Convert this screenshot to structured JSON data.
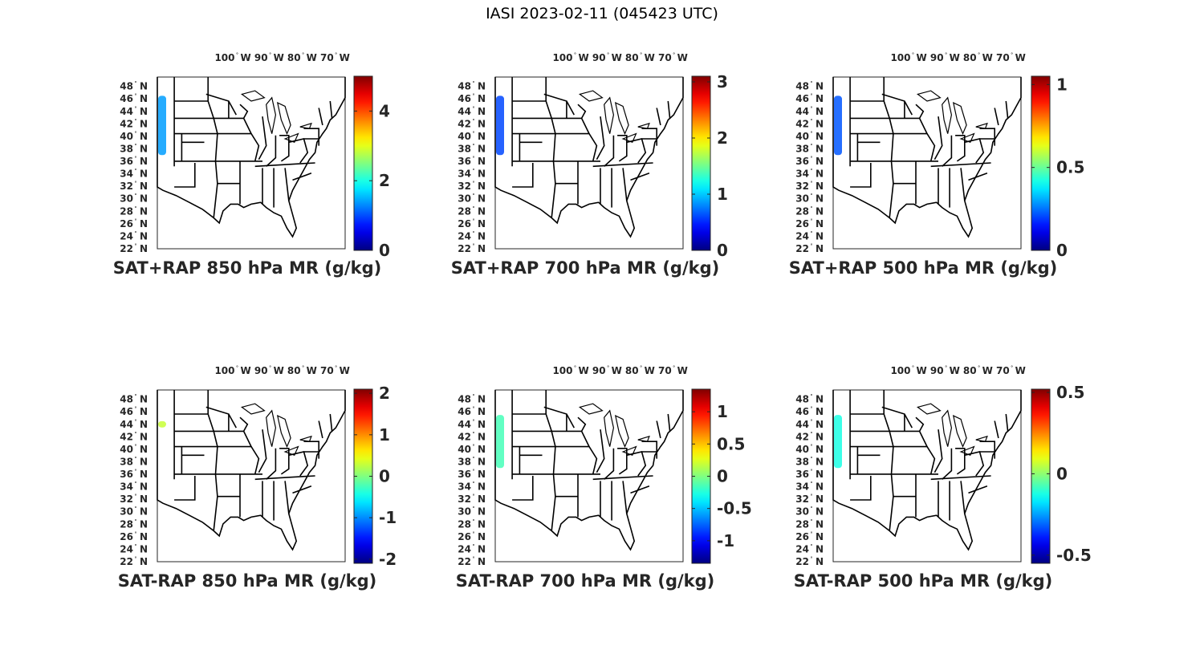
{
  "title": "IASI 2023-02-11 (045423 UTC)",
  "degree_symbol": "°",
  "lon_ticks": [
    {
      "deg": "100",
      "hem": "W",
      "lon": -100
    },
    {
      "deg": "90",
      "hem": "W",
      "lon": -90
    },
    {
      "deg": "80",
      "hem": "W",
      "lon": -80
    },
    {
      "deg": "70",
      "hem": "W",
      "lon": -70
    }
  ],
  "lat_ticks": [
    {
      "deg": "48",
      "hem": "N",
      "lat": 48
    },
    {
      "deg": "46",
      "hem": "N",
      "lat": 46
    },
    {
      "deg": "44",
      "hem": "N",
      "lat": 44
    },
    {
      "deg": "42",
      "hem": "N",
      "lat": 42
    },
    {
      "deg": "40",
      "hem": "N",
      "lat": 40
    },
    {
      "deg": "38",
      "hem": "N",
      "lat": 38
    },
    {
      "deg": "36",
      "hem": "N",
      "lat": 36
    },
    {
      "deg": "34",
      "hem": "N",
      "lat": 34
    },
    {
      "deg": "32",
      "hem": "N",
      "lat": 32
    },
    {
      "deg": "30",
      "hem": "N",
      "lat": 30
    },
    {
      "deg": "28",
      "hem": "N",
      "lat": 28
    },
    {
      "deg": "26",
      "hem": "N",
      "lat": 26
    },
    {
      "deg": "24",
      "hem": "N",
      "lat": 24
    },
    {
      "deg": "22",
      "hem": "N",
      "lat": 22
    }
  ],
  "colormap": "jet",
  "panels": [
    {
      "title": "SAT+RAP 850 hPa MR (g/kg)",
      "clim": [
        0,
        5
      ],
      "cbar_ticks": [
        "0",
        "2",
        "4"
      ],
      "cbar_values": [
        0,
        2,
        4
      ],
      "swath_value": 1.4,
      "swath_lat": [
        37,
        46.5
      ]
    },
    {
      "title": "SAT+RAP 700 hPa MR (g/kg)",
      "clim": [
        0,
        3.1
      ],
      "cbar_ticks": [
        "0",
        "1",
        "2",
        "3"
      ],
      "cbar_values": [
        0,
        1,
        2,
        3
      ],
      "swath_value": 0.6,
      "swath_lat": [
        37,
        46.5
      ]
    },
    {
      "title": "SAT+RAP 500 hPa MR (g/kg)",
      "clim": [
        0,
        1.05
      ],
      "cbar_ticks": [
        "0",
        "0.5",
        "1"
      ],
      "cbar_values": [
        0,
        0.5,
        1
      ],
      "swath_value": 0.22,
      "swath_lat": [
        37,
        46.5
      ]
    },
    {
      "title": "SAT-RAP 850 hPa MR (g/kg)",
      "clim": [
        -2.1,
        2.1
      ],
      "cbar_ticks": [
        "-2",
        "-1",
        "0",
        "1",
        "2"
      ],
      "cbar_values": [
        -2,
        -1,
        0,
        1,
        2
      ],
      "swath_value": 0.3,
      "swath_lat": [
        43.5,
        44.5
      ]
    },
    {
      "title": "SAT-RAP 700 hPa MR (g/kg)",
      "clim": [
        -1.35,
        1.35
      ],
      "cbar_ticks": [
        "-1",
        "-0.5",
        "0",
        "0.5",
        "1"
      ],
      "cbar_values": [
        -1,
        -0.5,
        0,
        0.5,
        1
      ],
      "swath_value": -0.15,
      "swath_lat": [
        37,
        45.5
      ]
    },
    {
      "title": "SAT-RAP 500 hPa MR (g/kg)",
      "clim": [
        -0.55,
        0.52
      ],
      "cbar_ticks": [
        "-0.5",
        "0",
        "0.5"
      ],
      "cbar_values": [
        -0.5,
        0,
        0.5
      ],
      "swath_value": -0.12,
      "swath_lat": [
        37,
        45.5
      ]
    }
  ]
}
